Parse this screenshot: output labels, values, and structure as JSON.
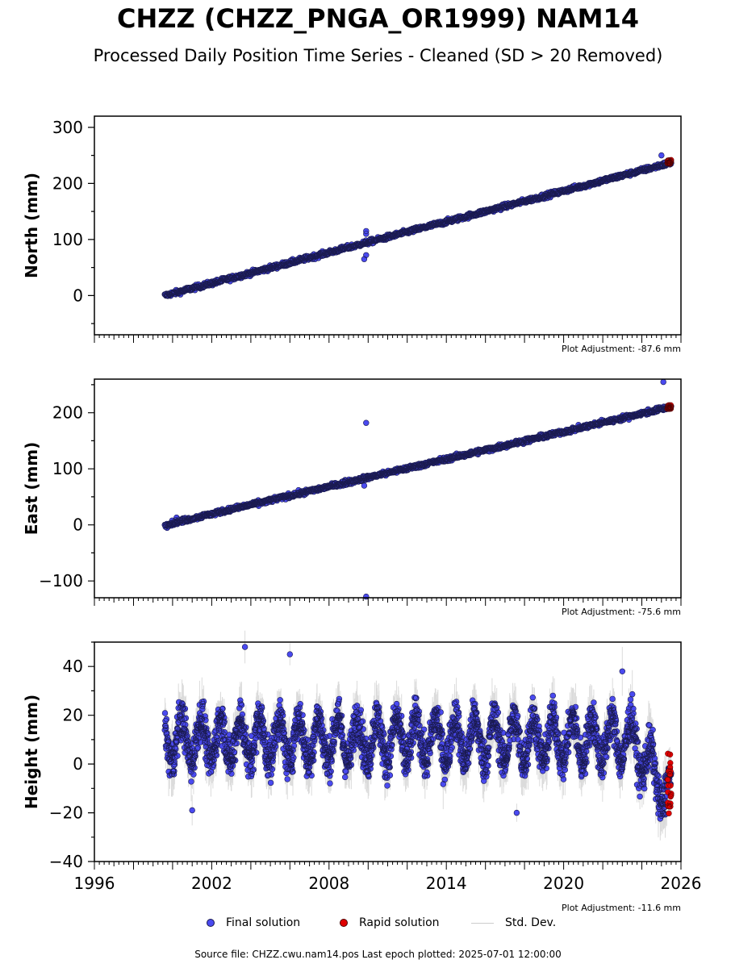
{
  "header": {
    "title": "CHZZ (CHZZ_PNGA_OR1999) NAM14",
    "subtitle": "Processed Daily Position Time Series - Cleaned (SD > 20 Removed)"
  },
  "legend": {
    "final_label": "Final solution",
    "rapid_label": "Rapid solution",
    "sd_label": "Std. Dev."
  },
  "footer": {
    "source": "Source file: CHZZ.cwu.nam14.pos  Last epoch plotted: 2025-07-01 12:00:00"
  },
  "colors": {
    "final": "#4a4af0",
    "final_edge": "#1a1a50",
    "rapid": "#e00000",
    "stddev": "#b0b0b0"
  },
  "chart_data": [
    {
      "type": "scatter",
      "ylabel": "North (mm)",
      "xlim": [
        1996,
        2026
      ],
      "ylim": [
        -70,
        320
      ],
      "yticks": [
        0,
        100,
        200,
        300
      ],
      "adjustment": "Plot Adjustment: -87.6 mm",
      "trend": {
        "x0": 1999.6,
        "y0": 0,
        "x1": 2025.5,
        "y1": 237,
        "scatter": 3
      },
      "outliers": [
        {
          "x": 2009.9,
          "y": 115
        },
        {
          "x": 2009.9,
          "y": 110
        },
        {
          "x": 2009.8,
          "y": 65
        },
        {
          "x": 2009.9,
          "y": 72
        },
        {
          "x": 2025.0,
          "y": 250
        }
      ],
      "rapid": {
        "x0": 2025.3,
        "x1": 2025.5,
        "ymin": 235,
        "ymax": 242
      },
      "series": [
        {
          "name": "Final solution"
        },
        {
          "name": "Rapid solution"
        }
      ]
    },
    {
      "type": "scatter",
      "ylabel": "East (mm)",
      "xlim": [
        1996,
        2026
      ],
      "ylim": [
        -130,
        260
      ],
      "yticks": [
        -100,
        0,
        100,
        200
      ],
      "adjustment": "Plot Adjustment: -75.6 mm",
      "trend": {
        "x0": 1999.6,
        "y0": 0,
        "x1": 2025.5,
        "y1": 211,
        "scatter": 3
      },
      "outliers": [
        {
          "x": 2009.9,
          "y": 182
        },
        {
          "x": 2009.9,
          "y": -128
        },
        {
          "x": 2009.8,
          "y": 70
        },
        {
          "x": 2025.1,
          "y": 255
        },
        {
          "x": 2000.2,
          "y": 13
        }
      ],
      "rapid": {
        "x0": 2025.3,
        "x1": 2025.5,
        "ymin": 207,
        "ymax": 214
      },
      "series": [
        {
          "name": "Final solution"
        },
        {
          "name": "Rapid solution"
        }
      ]
    },
    {
      "type": "scatter",
      "ylabel": "Height (mm)",
      "xlim": [
        1996,
        2026
      ],
      "ylim": [
        -40,
        50
      ],
      "yticks": [
        -40,
        -20,
        0,
        20,
        40
      ],
      "xticks": [
        1996,
        2002,
        2008,
        2014,
        2020,
        2026
      ],
      "adjustment": "Plot Adjustment: -11.6 mm",
      "seasonal": {
        "x0": 1999.6,
        "x1": 2025.5,
        "mean": 10,
        "amplitude": 9,
        "noise": 6,
        "drop_start": 2023.5,
        "drop_end_mean": -15
      },
      "outliers": [
        {
          "x": 2003.7,
          "y": 48
        },
        {
          "x": 2006.0,
          "y": 45
        },
        {
          "x": 2017.6,
          "y": -20
        },
        {
          "x": 2023.0,
          "y": 38
        },
        {
          "x": 2001.0,
          "y": -19
        }
      ],
      "rapid": {
        "x0": 2025.3,
        "x1": 2025.5,
        "ymin": -21,
        "ymax": 5
      },
      "series": [
        {
          "name": "Final solution"
        },
        {
          "name": "Rapid solution"
        }
      ]
    }
  ]
}
